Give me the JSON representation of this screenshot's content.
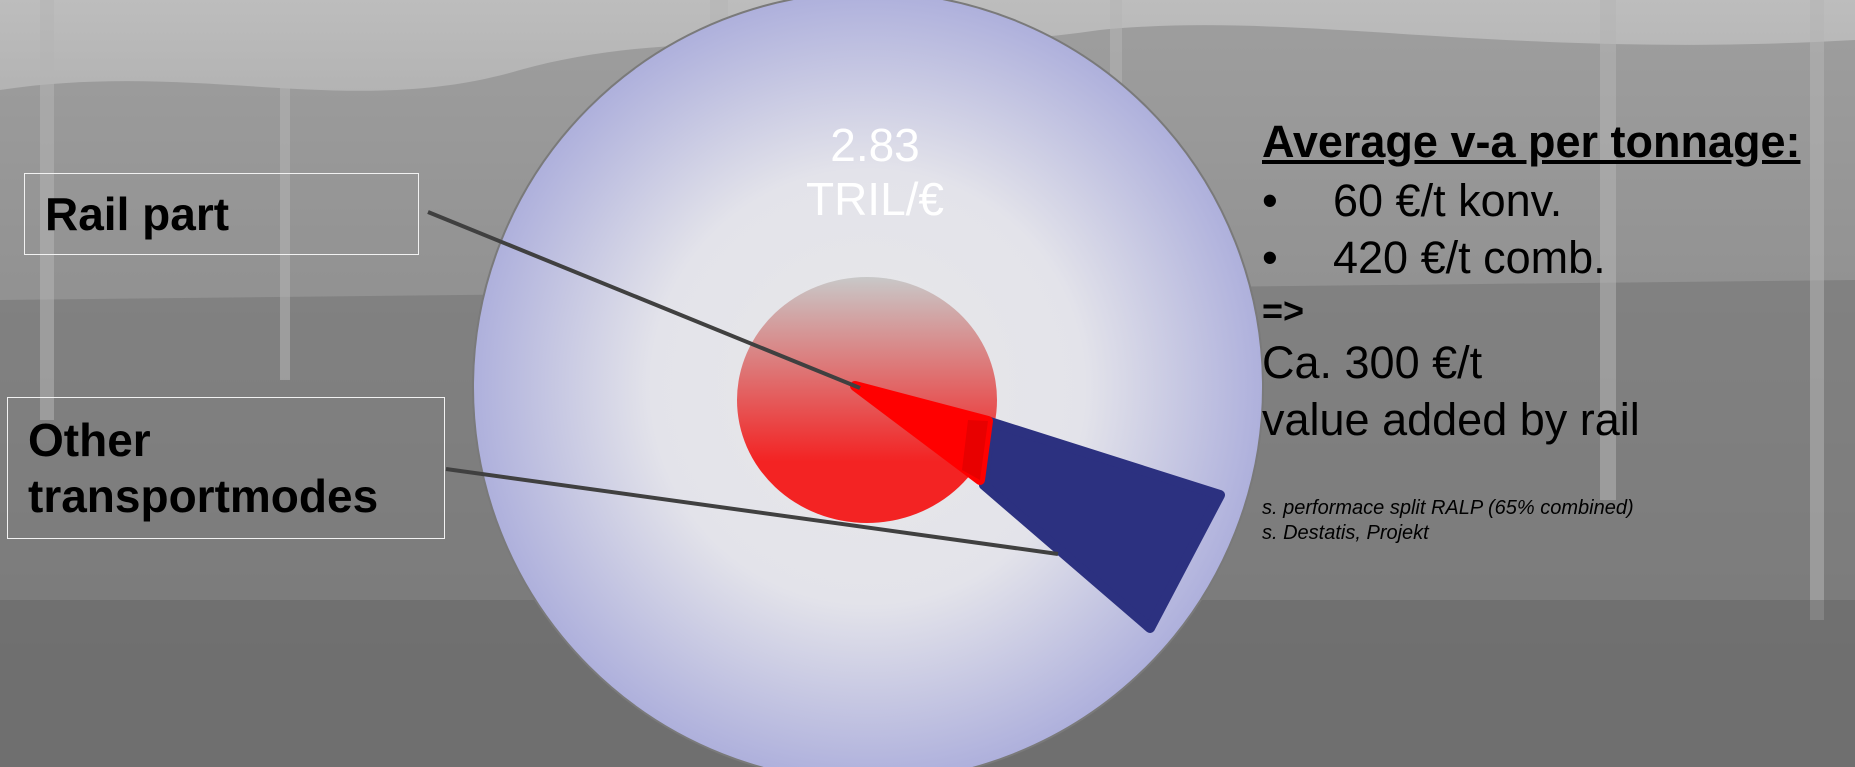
{
  "value_label": {
    "amount": "2.83",
    "unit": "TRIL/€"
  },
  "callouts": {
    "rail_part": "Rail part",
    "other_modes": [
      "Other",
      "transportmodes"
    ]
  },
  "summary": {
    "heading": "Average v-a per tonnage:",
    "bullets": [
      "60 €/t konv.",
      "420 €/t comb."
    ],
    "arrow": "=>",
    "result_lines": [
      "Ca. 300 €/t",
      "value added by rail"
    ],
    "notes": [
      "s. performace split RALP (65% combined)",
      "s. Destatis, Projekt"
    ]
  },
  "colors": {
    "background": "#8d8d8d",
    "outer_circle_edge": "#aeb0dc",
    "outer_circle_center": "#e8e8e8",
    "inner_circle": "#f32323",
    "rail_segment": "#ff0000",
    "other_segment": "#2c3180",
    "leader_line": "#404040"
  }
}
